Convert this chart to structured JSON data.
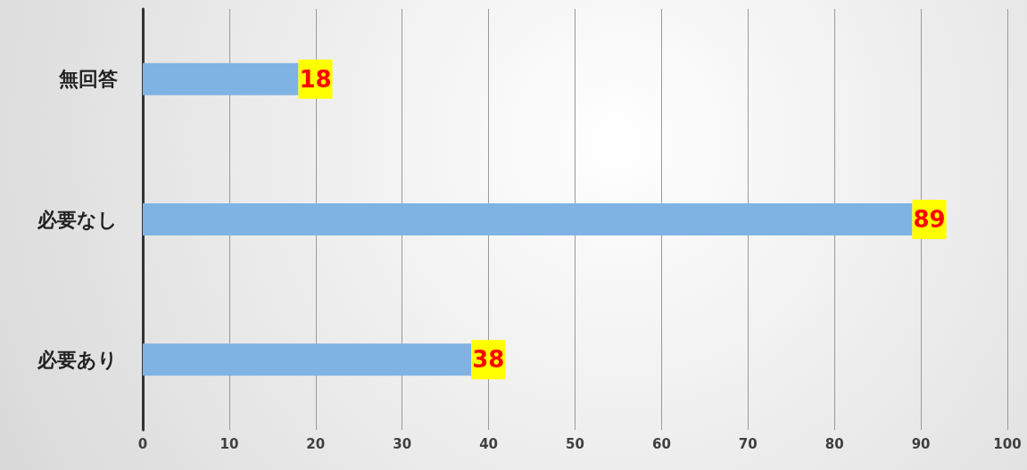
{
  "chart_data": {
    "type": "bar",
    "orientation": "horizontal",
    "categories": [
      "無回答",
      "必要なし",
      "必要あり"
    ],
    "values": [
      18,
      89,
      38
    ],
    "color": "#7fb3e3",
    "xlim": [
      0,
      100
    ],
    "xticks": [
      0,
      10,
      20,
      30,
      40,
      50,
      60,
      70,
      80,
      90,
      100
    ],
    "grid": "x",
    "data_labels": true
  }
}
